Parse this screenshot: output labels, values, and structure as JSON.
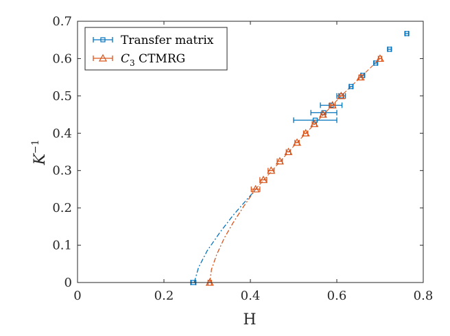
{
  "chart_data": {
    "type": "scatter",
    "title": "",
    "xlabel": "H",
    "ylabel_base": "K",
    "ylabel_sup": "−1",
    "xlim": [
      0,
      0.8
    ],
    "ylim": [
      0,
      0.7
    ],
    "xticks": [
      "0",
      "0.2",
      "0.4",
      "0.6",
      "0.8"
    ],
    "yticks": [
      "0",
      "0.1",
      "0.2",
      "0.3",
      "0.4",
      "0.5",
      "0.6",
      "0.7"
    ],
    "grid": false,
    "legend_position": "top-left",
    "series": [
      {
        "name": "Transfer matrix",
        "color": "#0072BD",
        "marker": "square",
        "points": [
          {
            "x": 0.268,
            "y": 0.0,
            "xerr": 0.006
          },
          {
            "x": 0.55,
            "y": 0.435,
            "xerr": 0.05
          },
          {
            "x": 0.57,
            "y": 0.455,
            "xerr": 0.03
          },
          {
            "x": 0.587,
            "y": 0.475,
            "xerr": 0.025
          },
          {
            "x": 0.61,
            "y": 0.5,
            "xerr": 0.01
          },
          {
            "x": 0.633,
            "y": 0.525,
            "xerr": 0.004
          },
          {
            "x": 0.66,
            "y": 0.555,
            "xerr": 0.004
          },
          {
            "x": 0.69,
            "y": 0.588,
            "xerr": 0.004
          },
          {
            "x": 0.722,
            "y": 0.625,
            "xerr": 0.004
          },
          {
            "x": 0.762,
            "y": 0.667,
            "xerr": 0.004
          }
        ],
        "fit": [
          [
            0.27,
            0.0
          ],
          [
            0.28,
            0.04
          ],
          [
            0.3,
            0.085
          ],
          [
            0.33,
            0.135
          ],
          [
            0.36,
            0.18
          ],
          [
            0.39,
            0.22
          ],
          [
            0.413,
            0.25
          ]
        ]
      },
      {
        "name": "C3 CTMRG",
        "label_base": "C",
        "label_sub": "3",
        "label_rest": " CTMRG",
        "color": "#D95319",
        "marker": "triangle",
        "points": [
          {
            "x": 0.306,
            "y": 0.0,
            "xerr": 0.004
          },
          {
            "x": 0.412,
            "y": 0.25,
            "xerr": 0.01
          },
          {
            "x": 0.43,
            "y": 0.275,
            "xerr": 0.008
          },
          {
            "x": 0.448,
            "y": 0.3,
            "xerr": 0.007
          },
          {
            "x": 0.468,
            "y": 0.325,
            "xerr": 0.006
          },
          {
            "x": 0.488,
            "y": 0.35,
            "xerr": 0.005
          },
          {
            "x": 0.508,
            "y": 0.375,
            "xerr": 0.005
          },
          {
            "x": 0.528,
            "y": 0.4,
            "xerr": 0.005
          },
          {
            "x": 0.548,
            "y": 0.425,
            "xerr": 0.005
          },
          {
            "x": 0.568,
            "y": 0.45,
            "xerr": 0.005
          },
          {
            "x": 0.59,
            "y": 0.475,
            "xerr": 0.006
          },
          {
            "x": 0.61,
            "y": 0.5,
            "xerr": 0.006
          },
          {
            "x": 0.655,
            "y": 0.55,
            "xerr": 0.004
          },
          {
            "x": 0.7,
            "y": 0.6,
            "xerr": 0.004
          }
        ],
        "fit": [
          [
            0.306,
            0.0
          ],
          [
            0.31,
            0.035
          ],
          [
            0.322,
            0.075
          ],
          [
            0.34,
            0.12
          ],
          [
            0.36,
            0.16
          ],
          [
            0.385,
            0.205
          ],
          [
            0.412,
            0.25
          ]
        ],
        "trend": [
          [
            0.412,
            0.25
          ],
          [
            0.5,
            0.365
          ],
          [
            0.61,
            0.5
          ],
          [
            0.7,
            0.6
          ]
        ]
      }
    ]
  }
}
